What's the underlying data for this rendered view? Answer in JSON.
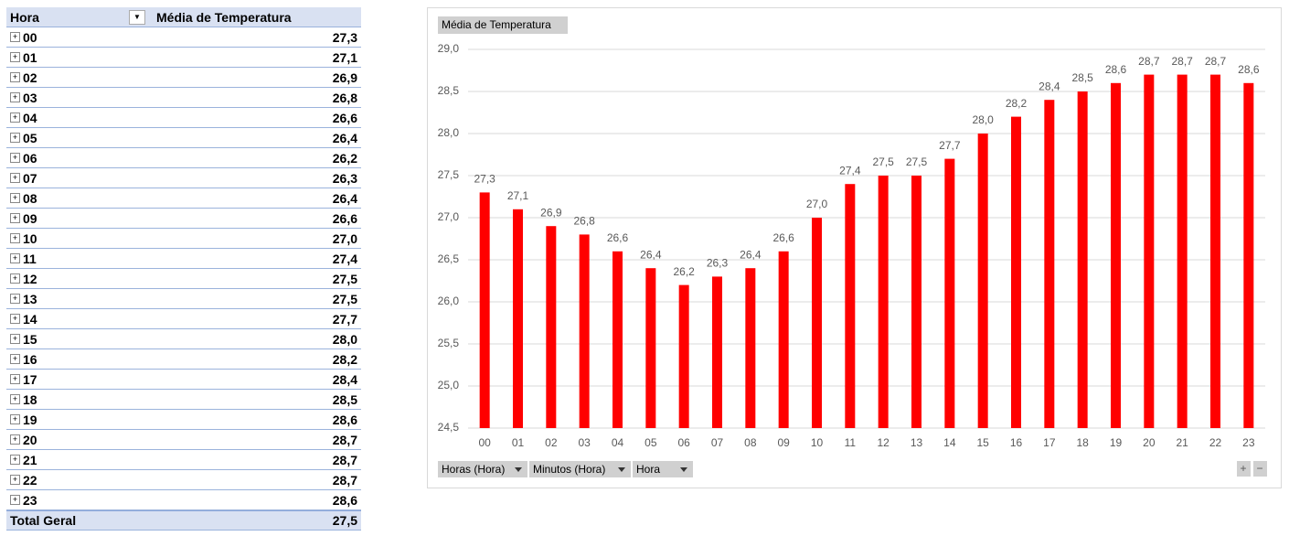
{
  "table": {
    "header": [
      "Hora",
      "Média de Temperatura"
    ],
    "rows": [
      [
        "00",
        "27,3"
      ],
      [
        "01",
        "27,1"
      ],
      [
        "02",
        "26,9"
      ],
      [
        "03",
        "26,8"
      ],
      [
        "04",
        "26,6"
      ],
      [
        "05",
        "26,4"
      ],
      [
        "06",
        "26,2"
      ],
      [
        "07",
        "26,3"
      ],
      [
        "08",
        "26,4"
      ],
      [
        "09",
        "26,6"
      ],
      [
        "10",
        "27,0"
      ],
      [
        "11",
        "27,4"
      ],
      [
        "12",
        "27,5"
      ],
      [
        "13",
        "27,5"
      ],
      [
        "14",
        "27,7"
      ],
      [
        "15",
        "28,0"
      ],
      [
        "16",
        "28,2"
      ],
      [
        "17",
        "28,4"
      ],
      [
        "18",
        "28,5"
      ],
      [
        "19",
        "28,6"
      ],
      [
        "20",
        "28,7"
      ],
      [
        "21",
        "28,7"
      ],
      [
        "22",
        "28,7"
      ],
      [
        "23",
        "28,6"
      ]
    ],
    "total": [
      "Total Geral",
      "27,5"
    ]
  },
  "chart_data": {
    "type": "bar",
    "categories": [
      "00",
      "01",
      "02",
      "03",
      "04",
      "05",
      "06",
      "07",
      "08",
      "09",
      "10",
      "11",
      "12",
      "13",
      "14",
      "15",
      "16",
      "17",
      "18",
      "19",
      "20",
      "21",
      "22",
      "23"
    ],
    "series": [
      {
        "name": "Média de Temperatura",
        "color": "#ff0000",
        "values": [
          27.3,
          27.1,
          26.9,
          26.8,
          26.6,
          26.4,
          26.2,
          26.3,
          26.4,
          26.6,
          27.0,
          27.4,
          27.5,
          27.5,
          27.7,
          28.0,
          28.2,
          28.4,
          28.5,
          28.6,
          28.7,
          28.7,
          28.7,
          28.6
        ],
        "value_labels": [
          "27,3",
          "27,1",
          "26,9",
          "26,8",
          "26,6",
          "26,4",
          "26,2",
          "26,3",
          "26,4",
          "26,6",
          "27,0",
          "27,4",
          "27,5",
          "27,5",
          "27,7",
          "28,0",
          "28,2",
          "28,4",
          "28,5",
          "28,6",
          "28,7",
          "28,7",
          "28,7",
          "28,6"
        ]
      }
    ],
    "ylim": [
      24.5,
      29.0
    ],
    "yticks": [
      {
        "value": 24.5,
        "label": "24,5"
      },
      {
        "value": 25.0,
        "label": "25,0"
      },
      {
        "value": 25.5,
        "label": "25,5"
      },
      {
        "value": 26.0,
        "label": "26,0"
      },
      {
        "value": 26.5,
        "label": "26,5"
      },
      {
        "value": 27.0,
        "label": "27,0"
      },
      {
        "value": 27.5,
        "label": "27,5"
      },
      {
        "value": 28.0,
        "label": "28,0"
      },
      {
        "value": 28.5,
        "label": "28,5"
      },
      {
        "value": 29.0,
        "label": "29,0"
      }
    ],
    "grid": true,
    "field_buttons": [
      "Horas (Hora)",
      "Minutos (Hora)",
      "Hora"
    ]
  }
}
